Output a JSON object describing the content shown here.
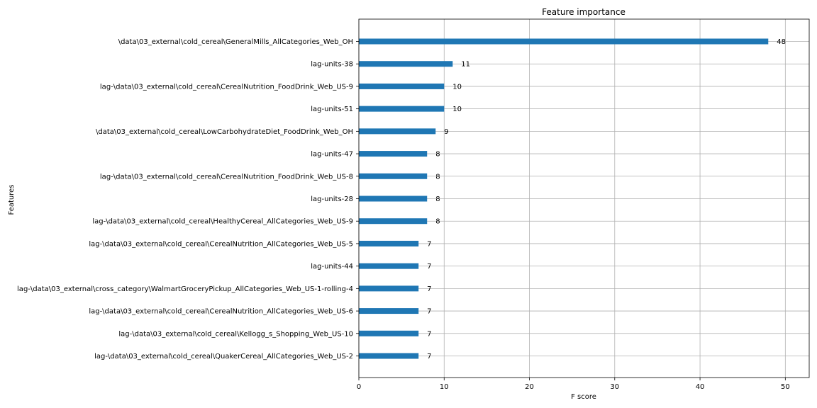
{
  "chart_data": {
    "type": "bar",
    "orientation": "horizontal",
    "title": "Feature importance",
    "xlabel": "F score",
    "ylabel": "Features",
    "xlim": [
      0,
      52.8
    ],
    "x_ticks": [
      0,
      10,
      20,
      30,
      40,
      50
    ],
    "grid": true,
    "bar_color": "#1f77b4",
    "categories": [
      "\\data\\03_external\\cold_cereal\\GeneralMills_AllCategories_Web_OH",
      "lag-units-38",
      "lag-\\data\\03_external\\cold_cereal\\CerealNutrition_FoodDrink_Web_US-9",
      "lag-units-51",
      "\\data\\03_external\\cold_cereal\\LowCarbohydrateDiet_FoodDrink_Web_OH",
      "lag-units-47",
      "lag-\\data\\03_external\\cold_cereal\\CerealNutrition_FoodDrink_Web_US-8",
      "lag-units-28",
      "lag-\\data\\03_external\\cold_cereal\\HealthyCereal_AllCategories_Web_US-9",
      "lag-\\data\\03_external\\cold_cereal\\CerealNutrition_AllCategories_Web_US-5",
      "lag-units-44",
      "lag-\\data\\03_external\\cross_category\\WalmartGroceryPickup_AllCategories_Web_US-1-rolling-4",
      "lag-\\data\\03_external\\cold_cereal\\CerealNutrition_AllCategories_Web_US-6",
      "lag-\\data\\03_external\\cold_cereal\\Kellogg_s_Shopping_Web_US-10",
      "lag-\\data\\03_external\\cold_cereal\\QuakerCereal_AllCategories_Web_US-2"
    ],
    "values": [
      48,
      11,
      10,
      10,
      9,
      8,
      8,
      8,
      8,
      7,
      7,
      7,
      7,
      7,
      7
    ]
  }
}
